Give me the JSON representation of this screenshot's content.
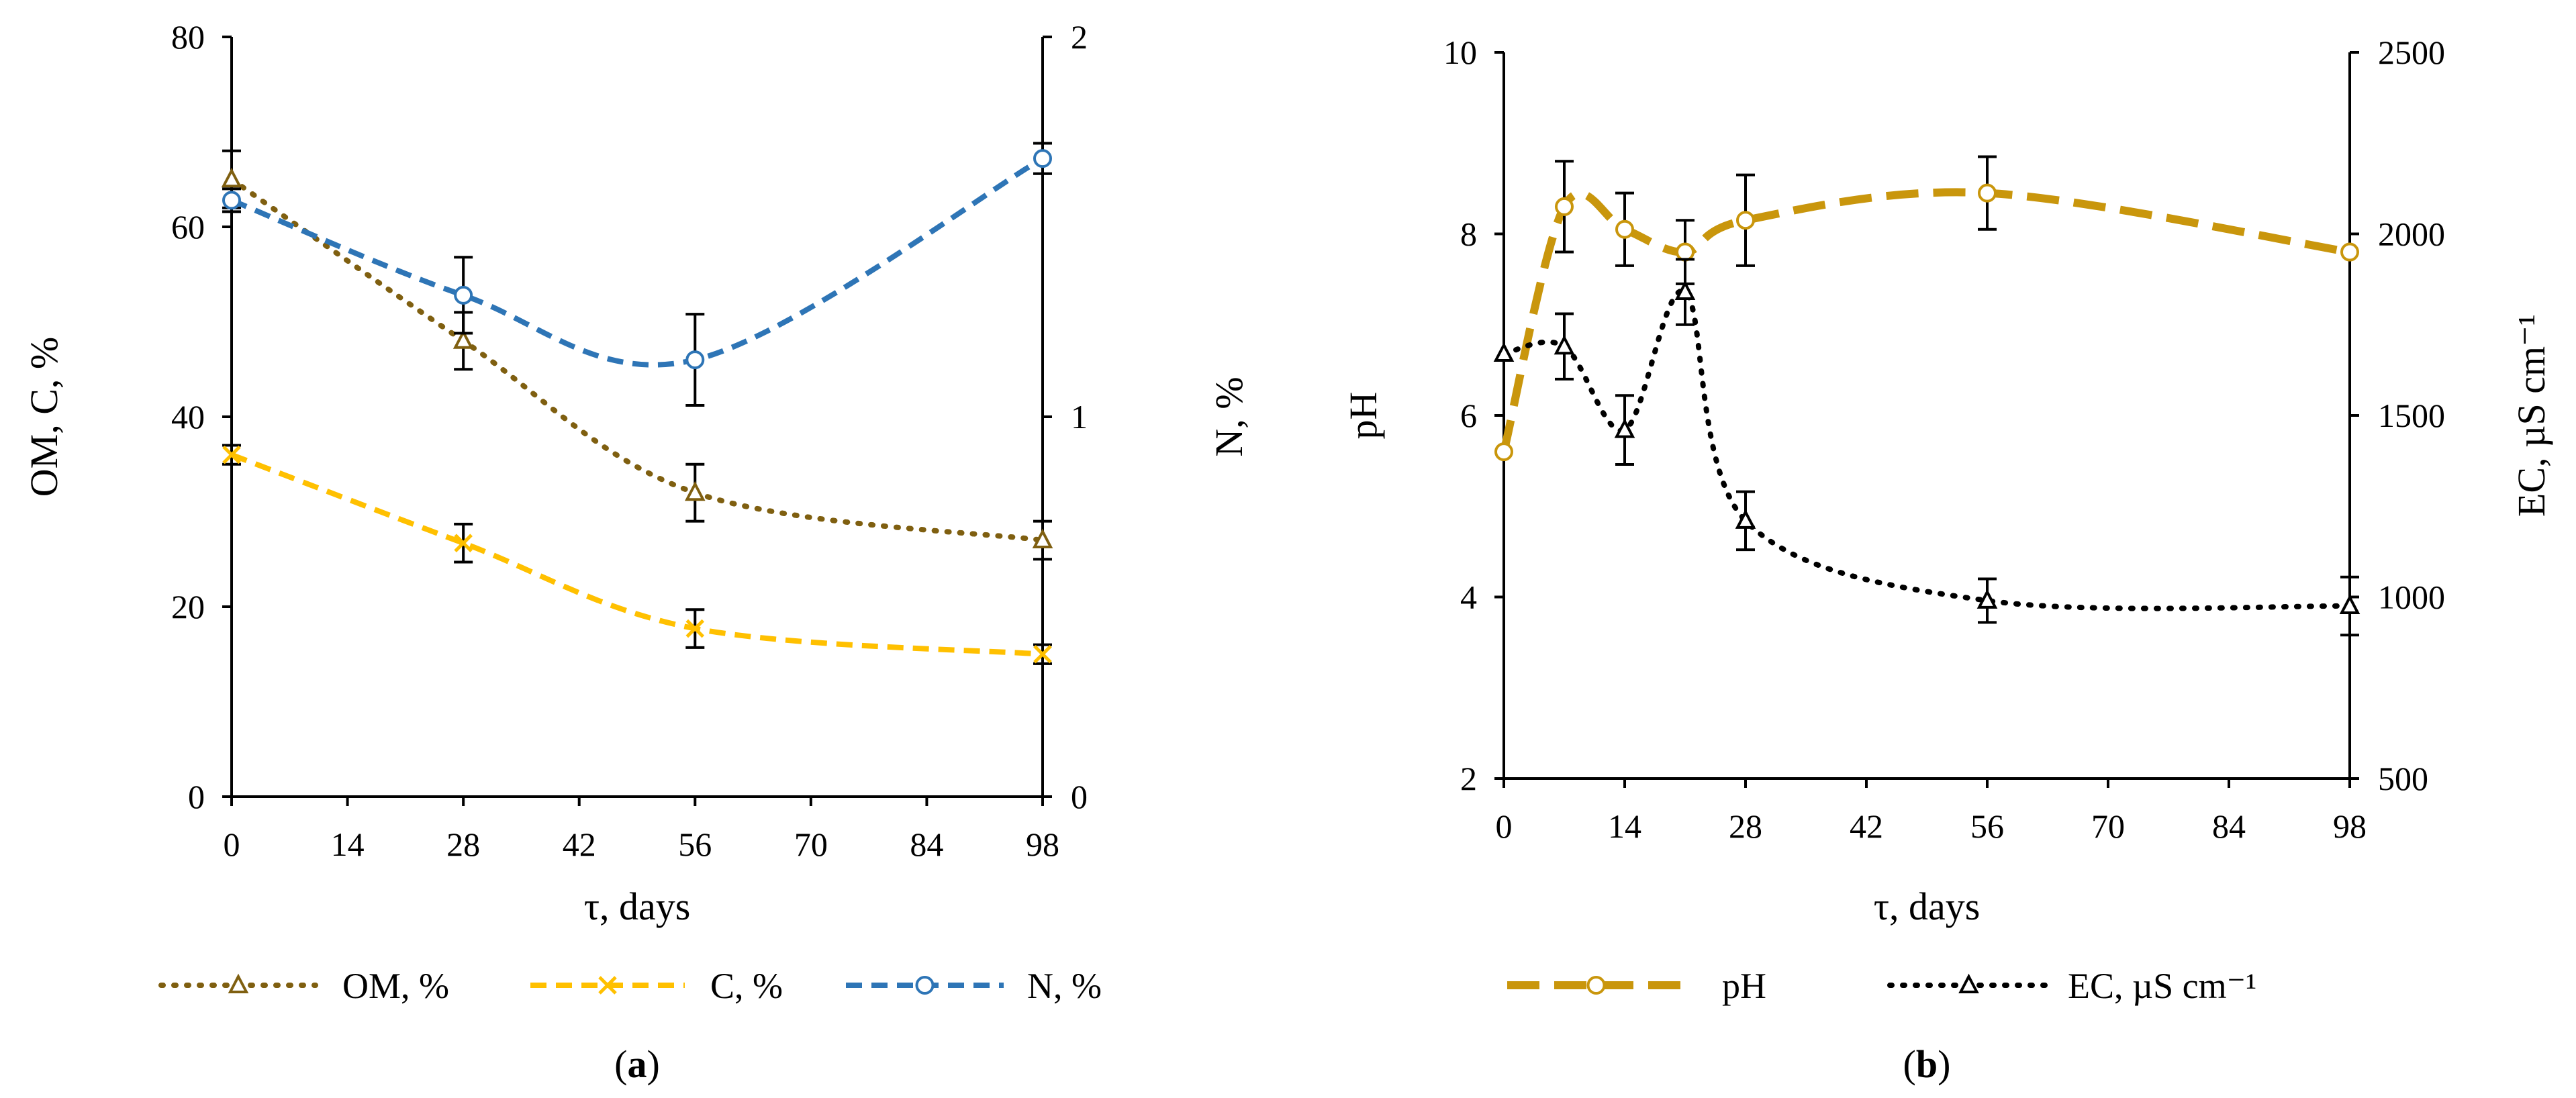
{
  "chart_data": [
    {
      "panel_label": "(a)",
      "type": "line",
      "x": [
        0,
        28,
        56,
        98
      ],
      "xlabel": "τ, days",
      "xticks": [
        "0",
        "14",
        "28",
        "42",
        "56",
        "70",
        "84",
        "98"
      ],
      "xlim": [
        0,
        98
      ],
      "ylabel": "OM, C, %",
      "ylim": [
        0,
        80
      ],
      "yticks": [
        "0",
        "20",
        "40",
        "60",
        "80"
      ],
      "y2label": "N, %",
      "y2lim": [
        0,
        2
      ],
      "y2ticks": [
        "0",
        "1",
        "2"
      ],
      "series": [
        {
          "name": "OM, %",
          "axis": "left",
          "color": "#7f5f10",
          "marker": "triangle",
          "dash": "dotted",
          "values": [
            65,
            48,
            32,
            27
          ],
          "errors": [
            3,
            3,
            3,
            2
          ]
        },
        {
          "name": "C, %",
          "axis": "left",
          "color": "#ffc000",
          "marker": "x",
          "dash": "dashed",
          "values": [
            36,
            26.7,
            17.7,
            15
          ],
          "errors": [
            1,
            2,
            2,
            1
          ]
        },
        {
          "name": "N, %",
          "axis": "right",
          "color": "#2e75b6",
          "marker": "circle",
          "dash": "dashed",
          "values": [
            1.57,
            1.32,
            1.15,
            1.68
          ],
          "errors": [
            0.03,
            0.1,
            0.12,
            0.04
          ]
        }
      ]
    },
    {
      "panel_label": "(b)",
      "type": "line",
      "xlabel": "τ, days",
      "xticks": [
        "0",
        "14",
        "28",
        "42",
        "56",
        "70",
        "84",
        "98"
      ],
      "xlim": [
        0,
        98
      ],
      "ylabel": "pH",
      "ylim": [
        2,
        10
      ],
      "yticks": [
        "2",
        "4",
        "6",
        "8",
        "10"
      ],
      "y2label": "EC, µS cm⁻¹",
      "y2lim": [
        500,
        2500
      ],
      "y2ticks": [
        "500",
        "1000",
        "1500",
        "2000",
        "2500"
      ],
      "series": [
        {
          "name": "pH",
          "axis": "left",
          "color": "#c9960c",
          "marker": "circle",
          "dash": "long-dashed",
          "x": [
            0,
            7,
            14,
            21,
            28,
            56,
            98
          ],
          "values": [
            5.6,
            8.3,
            8.05,
            7.8,
            8.15,
            8.45,
            7.8
          ],
          "errors": [
            0,
            0.5,
            0.4,
            0.35,
            0.5,
            0.4,
            0.2
          ],
          "bars": [
            false,
            true,
            true,
            true,
            true,
            true,
            false
          ]
        },
        {
          "name": "EC, µS cm⁻¹",
          "axis": "right",
          "color": "#000000",
          "marker": "triangle",
          "dash": "dotted",
          "x": [
            0,
            7,
            14,
            21,
            28,
            56,
            98
          ],
          "values": [
            1670,
            1690,
            1460,
            1840,
            1210,
            990,
            975
          ],
          "errors": [
            0,
            90,
            95,
            90,
            80,
            60,
            80
          ],
          "bars": [
            false,
            true,
            true,
            true,
            true,
            true,
            true
          ]
        }
      ]
    }
  ]
}
